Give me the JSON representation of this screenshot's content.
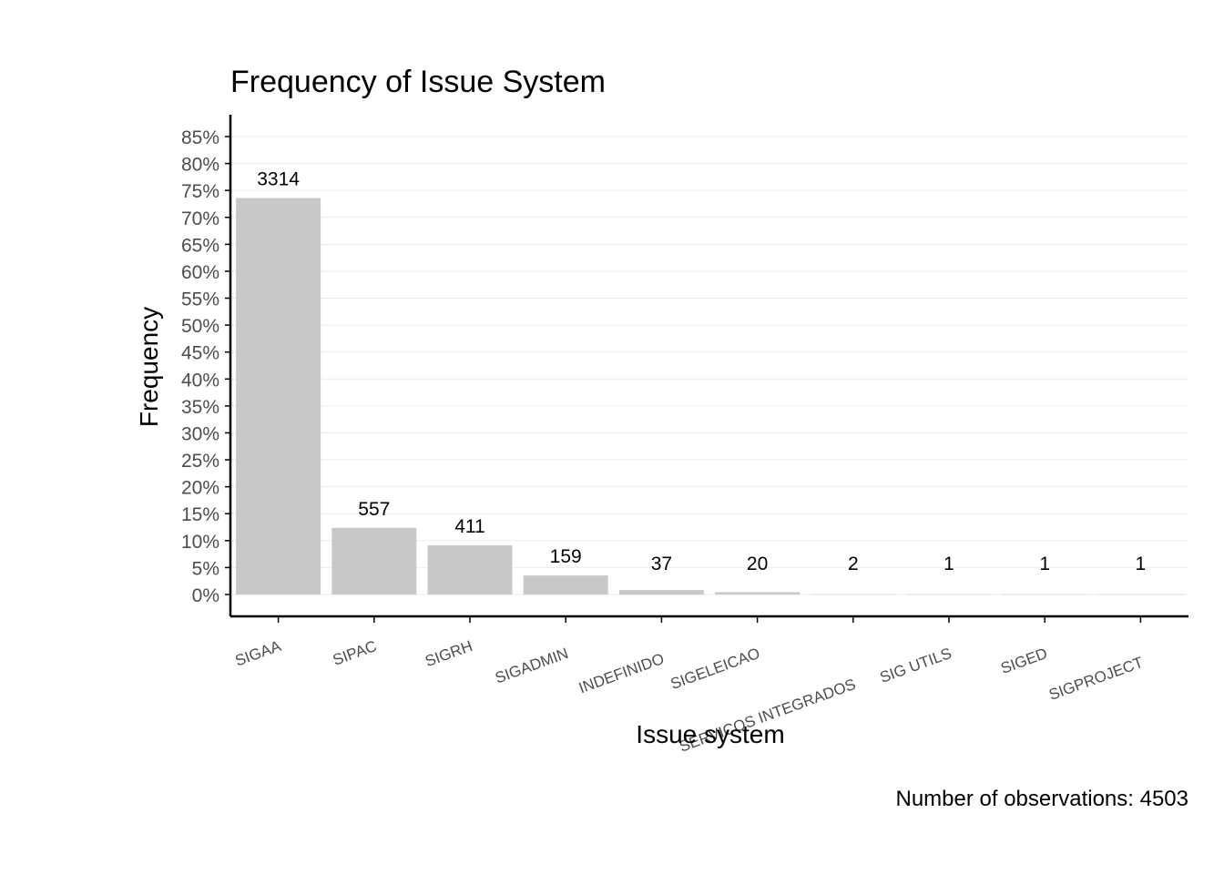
{
  "chart_data": {
    "type": "bar",
    "title": "Frequency of Issue System",
    "xlabel": "Issue system",
    "ylabel": "Frequency",
    "caption": "Number of observations: 4503",
    "categories": [
      "SIGAA",
      "SIPAC",
      "SIGRH",
      "SIGADMIN",
      "INDEFINIDO",
      "SIGELEICAO",
      "SERVICOS INTEGRADOS",
      "SIG UTILS",
      "SIGED",
      "SIGPROJECT"
    ],
    "counts": [
      3314,
      557,
      411,
      159,
      37,
      20,
      2,
      1,
      1,
      1
    ],
    "total": 4503,
    "ylim": [
      0,
      0.85
    ],
    "yticks": [
      0,
      0.05,
      0.1,
      0.15,
      0.2,
      0.25,
      0.3,
      0.35,
      0.4,
      0.45,
      0.5,
      0.55,
      0.6,
      0.65,
      0.7,
      0.75,
      0.8,
      0.85
    ],
    "ytick_labels": [
      "0%",
      "5%",
      "10%",
      "15%",
      "20%",
      "25%",
      "30%",
      "35%",
      "40%",
      "45%",
      "50%",
      "55%",
      "60%",
      "65%",
      "70%",
      "75%",
      "80%",
      "85%"
    ],
    "grid": "horizontal",
    "legend": "none",
    "colors": {
      "bar": "#c8c8c8",
      "grid": "#ebebeb",
      "axis": "#000000"
    }
  }
}
